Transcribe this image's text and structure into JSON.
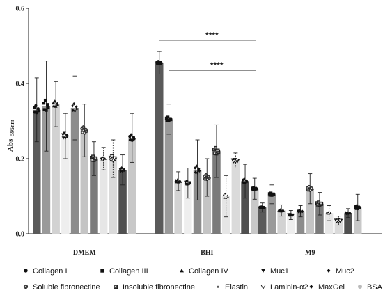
{
  "chart_data": {
    "type": "bar",
    "ylabel": "Abs",
    "ylabel_sub": "595nm",
    "ylim": [
      0,
      0.6
    ],
    "yticks": [
      "0.0",
      "0.2",
      "0.4",
      "0.6"
    ],
    "ytick_values": [
      0,
      0.2,
      0.4,
      0.6
    ],
    "grid": false,
    "legend_position": "bottom",
    "categories": [
      "DMEM",
      "BHI",
      "M9"
    ],
    "series": [
      {
        "name": "Collagen I",
        "color": "#5a5a5a",
        "marker": "circle",
        "values": [
          0.33,
          0.455,
          0.07
        ],
        "errors": [
          0.085,
          0.03,
          0.012
        ]
      },
      {
        "name": "Collagen III",
        "color": "#9a9a9a",
        "marker": "square",
        "values": [
          0.34,
          0.305,
          0.105
        ],
        "errors": [
          0.12,
          0.04,
          0.025
        ]
      },
      {
        "name": "Collagen IV",
        "color": "#d2d2d2",
        "marker": "triangle-up",
        "values": [
          0.345,
          0.14,
          0.062
        ],
        "errors": [
          0.06,
          0.025,
          0.015
        ]
      },
      {
        "name": "Muc1",
        "color": "#eeeeee",
        "marker": "triangle-down",
        "values": [
          0.26,
          0.135,
          0.05
        ],
        "errors": [
          0.06,
          0.04,
          0.012
        ]
      },
      {
        "name": "Muc2",
        "color": "#8c8c8c",
        "marker": "diamond",
        "values": [
          0.335,
          0.17,
          0.06
        ],
        "errors": [
          0.085,
          0.08,
          0.015
        ]
      },
      {
        "name": "Soluble fibronectine",
        "color": "#c4c4c4",
        "marker": "star",
        "values": [
          0.275,
          0.15,
          0.12
        ],
        "errors": [
          0.07,
          0.05,
          0.04
        ]
      },
      {
        "name": "Insoluble fibronectine",
        "color": "#7b7b7b",
        "marker": "square-dot",
        "values": [
          0.2,
          0.22,
          0.08
        ],
        "errors": [
          0.045,
          0.07,
          0.03
        ]
      },
      {
        "name": "Elastin",
        "color": "#e6e6e6",
        "marker": "small-triangle",
        "values": [
          0.2,
          0.1,
          0.055
        ],
        "errors": [
          0.03,
          0.055,
          0.02
        ]
      },
      {
        "name": "Laminin-α2",
        "color": "#dadada",
        "marker": "triangle-down-open",
        "values": [
          0.2,
          0.195,
          0.035
        ],
        "errors": [
          0.05,
          0.02,
          0.012
        ]
      },
      {
        "name": "MaxGel",
        "color": "#505050",
        "marker": "diamond",
        "values": [
          0.17,
          0.14,
          0.055
        ],
        "errors": [
          0.04,
          0.045,
          0.012
        ]
      },
      {
        "name": "BSA",
        "color": "#c8c8c8",
        "marker": "circle",
        "values": [
          0.255,
          0.12,
          0.07
        ],
        "errors": [
          0.065,
          0.028,
          0.035
        ]
      }
    ],
    "annotations": [
      {
        "text": "****",
        "category": "BHI",
        "y": 0.515
      },
      {
        "text": "****",
        "category": "BHI",
        "y": 0.435
      }
    ]
  }
}
